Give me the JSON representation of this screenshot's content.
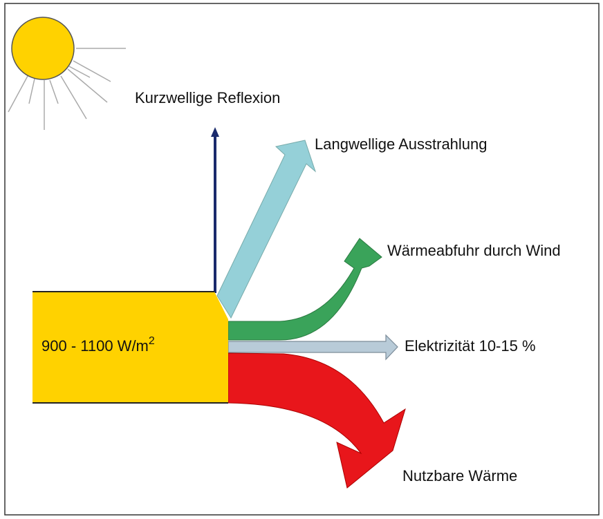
{
  "input": {
    "label": "900 - 1100 W/m",
    "exponent": "2"
  },
  "outputs": [
    {
      "label": "Kurzwellige Reflexion"
    },
    {
      "label": "Langwellige Ausstrahlung"
    },
    {
      "label": "Wärmeabfuhr durch Wind"
    },
    {
      "label": "Elektrizität 10-15 %"
    },
    {
      "label": "Nutzbare Wärme"
    }
  ]
}
